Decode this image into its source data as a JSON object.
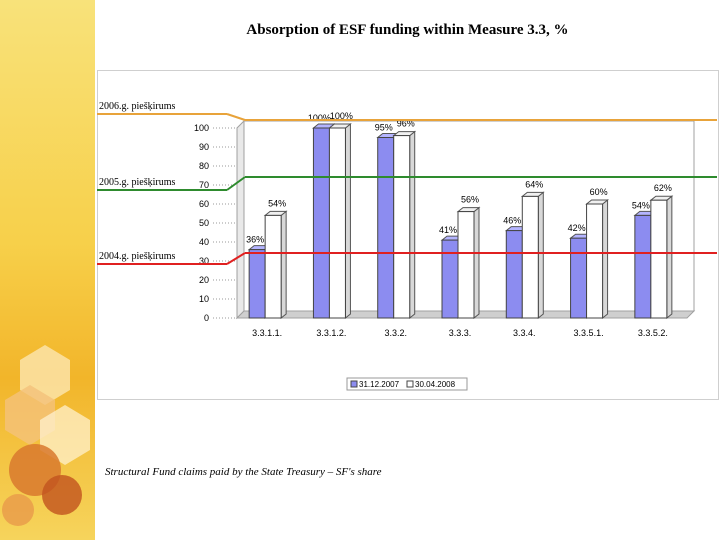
{
  "slide": {
    "title": "Absorption of ESF funding within Measure 3.3, %",
    "footnote": "Structural Fund claims paid by the State Treasury – SF's share"
  },
  "colors": {
    "side_band": "#f5c63a",
    "series1_bar": "#8c8cf0",
    "series2_bar": "#ffffff",
    "line_2006": "#e8a33a",
    "line_2005": "#2e8b2e",
    "line_2004": "#e02020"
  },
  "chart_data": {
    "type": "bar",
    "title": "",
    "xlabel": "",
    "ylabel": "",
    "categories": [
      "3.3.1.1.",
      "3.3.1.2.",
      "3.3.2.",
      "3.3.3.",
      "3.3.4.",
      "3.3.5.1.",
      "3.3.5.2."
    ],
    "series": [
      {
        "name": "31.12.2007",
        "values": [
          36,
          100,
          95,
          41,
          46,
          42,
          54
        ],
        "labels": [
          "36%",
          "100%",
          "95%",
          "41%",
          "46%",
          "42%",
          "54%"
        ]
      },
      {
        "name": "30.04.2008",
        "values": [
          54,
          100,
          96,
          56,
          64,
          60,
          62
        ],
        "labels": [
          "54%",
          "100%",
          "96%",
          "56%",
          "64%",
          "60%",
          "62%"
        ]
      }
    ],
    "ylim": [
      0,
      100
    ],
    "yticks": [
      "0",
      "10",
      "20",
      "30",
      "40",
      "50",
      "60",
      "70",
      "80",
      "90",
      "100"
    ],
    "legend": "bottom",
    "grid": false,
    "annotations": [
      {
        "label": "2006.g. piešķirums",
        "value": 100,
        "color": "#e8a33a"
      },
      {
        "label": "2005.g. piešķirums",
        "value": 70,
        "color": "#2e8b2e"
      },
      {
        "label": "2004.g. piešķirums",
        "value": 30,
        "color": "#e02020"
      }
    ]
  }
}
